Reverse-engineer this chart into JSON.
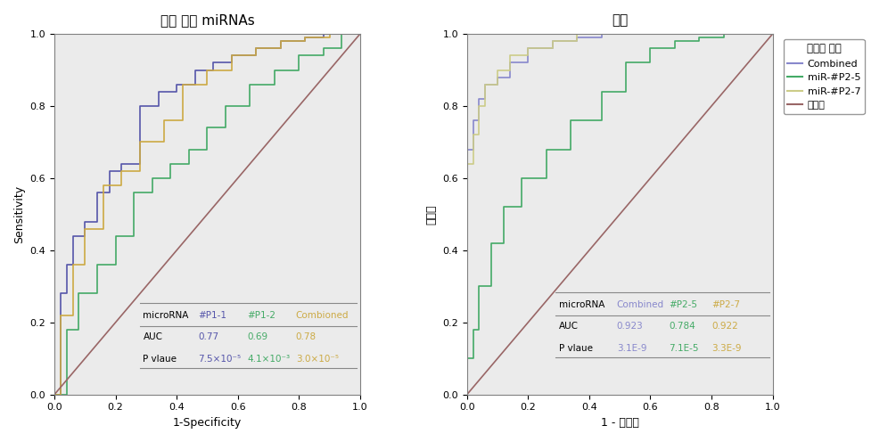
{
  "left_title": "통증 여성 miRNAs",
  "right_title": "통증",
  "left_xlabel": "1-Specificity",
  "right_xlabel": "1 - 특이도",
  "left_ylabel": "Sensitivity",
  "right_ylabel": "민감도",
  "left_curves": {
    "P1_1": {
      "color": "#5555aa",
      "label": "#P1-1",
      "x": [
        0.0,
        0.02,
        0.02,
        0.04,
        0.04,
        0.06,
        0.06,
        0.1,
        0.1,
        0.14,
        0.14,
        0.18,
        0.18,
        0.22,
        0.22,
        0.28,
        0.28,
        0.34,
        0.34,
        0.4,
        0.4,
        0.46,
        0.46,
        0.52,
        0.52,
        0.58,
        0.58,
        0.66,
        0.66,
        0.74,
        0.74,
        0.82,
        0.82,
        0.88,
        0.88,
        0.94,
        0.94,
        1.0
      ],
      "y": [
        0.0,
        0.0,
        0.28,
        0.28,
        0.36,
        0.36,
        0.44,
        0.44,
        0.48,
        0.48,
        0.56,
        0.56,
        0.62,
        0.62,
        0.64,
        0.64,
        0.8,
        0.8,
        0.84,
        0.84,
        0.86,
        0.86,
        0.9,
        0.9,
        0.92,
        0.92,
        0.94,
        0.94,
        0.96,
        0.96,
        0.98,
        0.98,
        0.99,
        0.99,
        1.0,
        1.0,
        1.0,
        1.0
      ]
    },
    "P1_2": {
      "color": "#44aa66",
      "label": "#P1-2",
      "x": [
        0.0,
        0.04,
        0.04,
        0.08,
        0.08,
        0.14,
        0.14,
        0.2,
        0.2,
        0.26,
        0.26,
        0.32,
        0.32,
        0.38,
        0.38,
        0.44,
        0.44,
        0.5,
        0.5,
        0.56,
        0.56,
        0.64,
        0.64,
        0.72,
        0.72,
        0.8,
        0.8,
        0.88,
        0.88,
        0.94,
        0.94,
        1.0
      ],
      "y": [
        0.0,
        0.0,
        0.18,
        0.18,
        0.28,
        0.28,
        0.36,
        0.36,
        0.44,
        0.44,
        0.56,
        0.56,
        0.6,
        0.6,
        0.64,
        0.64,
        0.68,
        0.68,
        0.74,
        0.74,
        0.8,
        0.8,
        0.86,
        0.86,
        0.9,
        0.9,
        0.94,
        0.94,
        0.96,
        0.96,
        1.0,
        1.0
      ]
    },
    "combined": {
      "color": "#ccaa44",
      "label": "Combioned",
      "x": [
        0.0,
        0.02,
        0.02,
        0.06,
        0.06,
        0.1,
        0.1,
        0.16,
        0.16,
        0.22,
        0.22,
        0.28,
        0.28,
        0.36,
        0.36,
        0.42,
        0.42,
        0.5,
        0.5,
        0.58,
        0.58,
        0.66,
        0.66,
        0.74,
        0.74,
        0.82,
        0.82,
        0.9,
        0.9,
        0.96,
        0.96,
        1.0
      ],
      "y": [
        0.0,
        0.0,
        0.22,
        0.22,
        0.36,
        0.36,
        0.46,
        0.46,
        0.58,
        0.58,
        0.62,
        0.62,
        0.7,
        0.7,
        0.76,
        0.76,
        0.86,
        0.86,
        0.9,
        0.9,
        0.94,
        0.94,
        0.96,
        0.96,
        0.98,
        0.98,
        0.99,
        0.99,
        1.0,
        1.0,
        1.0,
        1.0
      ]
    }
  },
  "right_curves": {
    "combined": {
      "color": "#8888cc",
      "label": "Combined",
      "x": [
        0.0,
        0.0,
        0.02,
        0.02,
        0.04,
        0.04,
        0.06,
        0.06,
        0.1,
        0.1,
        0.14,
        0.14,
        0.2,
        0.2,
        0.28,
        0.28,
        0.36,
        0.36,
        0.44,
        0.44,
        0.52,
        0.52,
        1.0
      ],
      "y": [
        0.0,
        0.68,
        0.68,
        0.76,
        0.76,
        0.82,
        0.82,
        0.86,
        0.86,
        0.88,
        0.88,
        0.92,
        0.92,
        0.96,
        0.96,
        0.98,
        0.98,
        0.99,
        0.99,
        1.0,
        1.0,
        1.0,
        1.0
      ]
    },
    "P2_5": {
      "color": "#44aa66",
      "label": "miR-#P2-5",
      "x": [
        0.0,
        0.0,
        0.02,
        0.02,
        0.04,
        0.04,
        0.08,
        0.08,
        0.12,
        0.12,
        0.18,
        0.18,
        0.26,
        0.26,
        0.34,
        0.34,
        0.44,
        0.44,
        0.52,
        0.52,
        0.6,
        0.6,
        0.68,
        0.68,
        0.76,
        0.76,
        0.84,
        0.84,
        0.92,
        0.92,
        1.0
      ],
      "y": [
        0.0,
        0.1,
        0.1,
        0.18,
        0.18,
        0.3,
        0.3,
        0.42,
        0.42,
        0.52,
        0.52,
        0.6,
        0.6,
        0.68,
        0.68,
        0.76,
        0.76,
        0.84,
        0.84,
        0.92,
        0.92,
        0.96,
        0.96,
        0.98,
        0.98,
        0.99,
        0.99,
        1.0,
        1.0,
        1.0,
        1.0
      ]
    },
    "P2_7": {
      "color": "#cccc88",
      "label": "miR-#P2-7",
      "x": [
        0.0,
        0.0,
        0.02,
        0.02,
        0.04,
        0.04,
        0.06,
        0.06,
        0.1,
        0.1,
        0.14,
        0.14,
        0.2,
        0.2,
        0.28,
        0.28,
        0.36,
        0.36,
        1.0
      ],
      "y": [
        0.0,
        0.64,
        0.64,
        0.72,
        0.72,
        0.8,
        0.8,
        0.86,
        0.86,
        0.9,
        0.9,
        0.94,
        0.94,
        0.96,
        0.96,
        0.98,
        0.98,
        1.0,
        1.0
      ]
    }
  },
  "left_table": {
    "row1": [
      "microRNA",
      "#P1-1",
      "#P1-2",
      "Combioned"
    ],
    "row1_colors": [
      "black",
      "#5555aa",
      "#44aa66",
      "#ccaa44"
    ],
    "row2": [
      "AUC",
      "0.77",
      "0.69",
      "0.78"
    ],
    "row2_colors": [
      "black",
      "#5555aa",
      "#44aa66",
      "#ccaa44"
    ],
    "row3_label": "P vlaue",
    "row3_vals": [
      "7.5×10⁻⁵",
      "4.1×10⁻³",
      "3.0×10⁻⁵"
    ],
    "row3_colors": [
      "#5555aa",
      "#44aa66",
      "#ccaa44"
    ]
  },
  "right_table": {
    "row1": [
      "microRNA",
      "Combined",
      "#P2-5",
      "#P2-7"
    ],
    "row1_colors": [
      "black",
      "#8888cc",
      "#44aa66",
      "#ccaa44"
    ],
    "row2": [
      "AUC",
      "0.923",
      "0.784",
      "0.922"
    ],
    "row2_colors": [
      "black",
      "#8888cc",
      "#44aa66",
      "#ccaa44"
    ],
    "row3_label": "P vlaue",
    "row3_vals": [
      "3.1E-9",
      "7.1E-5",
      "3.3E-9"
    ],
    "row3_colors": [
      "#8888cc",
      "#44aa66",
      "#ccaa44"
    ]
  },
  "right_legend": {
    "title": "곡선의 구성",
    "items": [
      "Combined",
      "miR-#P2-5",
      "miR-#P2-7",
      "참조선"
    ],
    "colors": [
      "#8888cc",
      "#44aa66",
      "#cccc88",
      "#996666"
    ]
  },
  "diag_color": "#996666",
  "plot_bg": "#ebebeb"
}
